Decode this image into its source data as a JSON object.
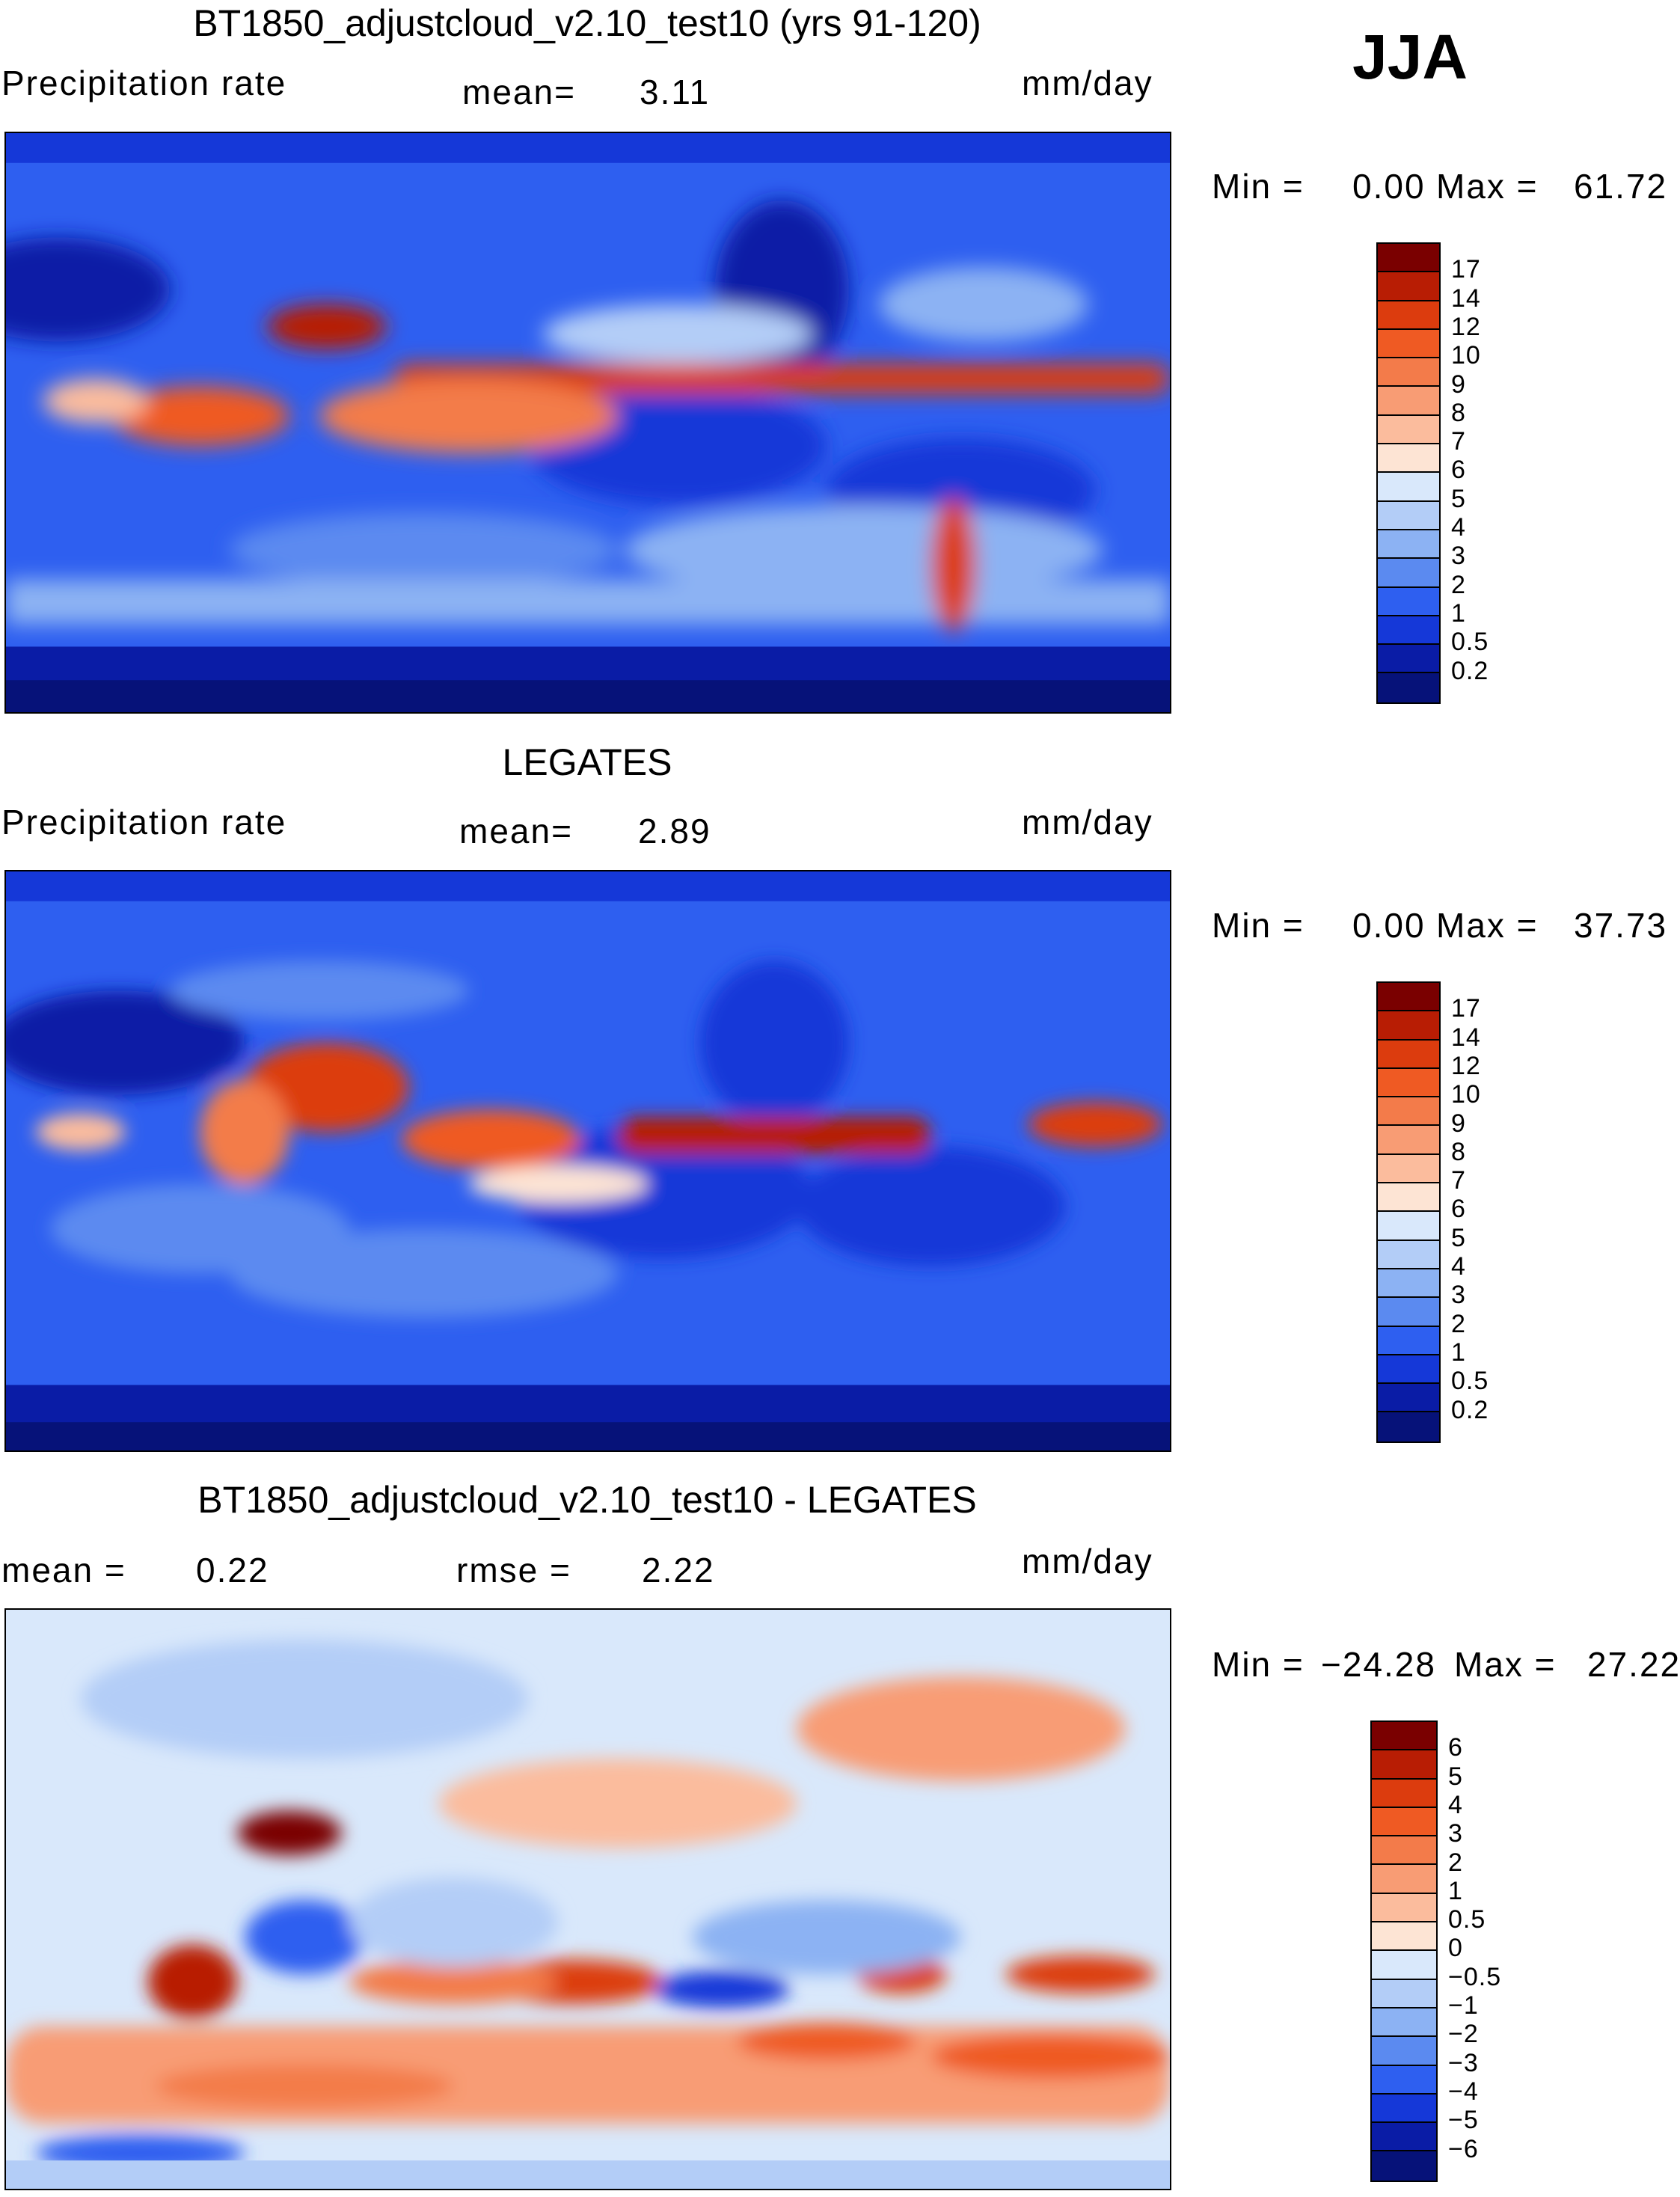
{
  "season": "JJA",
  "panels": [
    {
      "title": "BT1850_adjustcloud_v2.10_test10 (yrs 91-120)",
      "left_label": "Precipitation rate",
      "mid_label": "mean=",
      "mid_value": "3.11",
      "units": "mm/day",
      "min_label": "Min =",
      "min_value": "0.00",
      "max_label": "Max =",
      "max_value": "61.72",
      "colorbar": {
        "levels": [
          "17",
          "14",
          "12",
          "10",
          "9",
          "8",
          "7",
          "6",
          "5",
          "4",
          "3",
          "2",
          "1",
          "0.5",
          "0.2"
        ],
        "colors": [
          "#7a0000",
          "#b81d04",
          "#dc3c0e",
          "#ef5a23",
          "#f37b4a",
          "#f89c74",
          "#fbbc9d",
          "#fde4d4",
          "#d9e8fb",
          "#b3cdf7",
          "#8cb2f3",
          "#5b8af0",
          "#2e5ff0",
          "#1538d8",
          "#0a1ca6",
          "#061279"
        ]
      }
    },
    {
      "title": "LEGATES",
      "left_label": "Precipitation rate",
      "mid_label": "mean=",
      "mid_value": "2.89",
      "units": "mm/day",
      "min_label": "Min =",
      "min_value": "0.00",
      "max_label": "Max =",
      "max_value": "37.73",
      "colorbar": {
        "levels": [
          "17",
          "14",
          "12",
          "10",
          "9",
          "8",
          "7",
          "6",
          "5",
          "4",
          "3",
          "2",
          "1",
          "0.5",
          "0.2"
        ],
        "colors": [
          "#7a0000",
          "#b81d04",
          "#dc3c0e",
          "#ef5a23",
          "#f37b4a",
          "#f89c74",
          "#fbbc9d",
          "#fde4d4",
          "#d9e8fb",
          "#b3cdf7",
          "#8cb2f3",
          "#5b8af0",
          "#2e5ff0",
          "#1538d8",
          "#0a1ca6",
          "#061279"
        ]
      }
    },
    {
      "title": "BT1850_adjustcloud_v2.10_test10 - LEGATES",
      "left_label": "mean =",
      "left_value": "0.22",
      "mid_label": "rmse =",
      "mid_value": "2.22",
      "units": "mm/day",
      "min_label": "Min =",
      "min_value": "−24.28",
      "max_label": "Max =",
      "max_value": "27.22",
      "colorbar": {
        "levels": [
          "6",
          "5",
          "4",
          "3",
          "2",
          "1",
          "0.5",
          "0",
          "−0.5",
          "−1",
          "−2",
          "−3",
          "−4",
          "−5",
          "−6"
        ],
        "colors": [
          "#7a0000",
          "#b81d04",
          "#dc3c0e",
          "#ef5a23",
          "#f37b4a",
          "#f89c74",
          "#fbbc9d",
          "#fde4d4",
          "#d9e8fb",
          "#b3cdf7",
          "#8cb2f3",
          "#5b8af0",
          "#2e5ff0",
          "#1538d8",
          "#0a1ca6",
          "#061279"
        ]
      }
    }
  ]
}
